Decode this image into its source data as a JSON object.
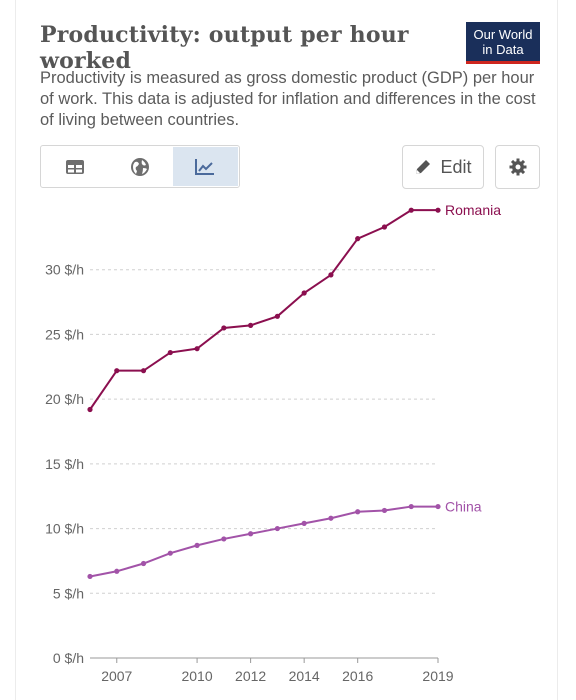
{
  "header": {
    "title": "Productivity: output per hour worked",
    "subtitle": "Productivity is measured as gross domestic product (GDP) per hour of work. This data is adjusted for inflation and differences in the cost of living between countries.",
    "logo_line1": "Our World",
    "logo_line2": "in Data"
  },
  "controls": {
    "edit_label": "Edit",
    "tabs": [
      {
        "icon": "table-icon",
        "active": false
      },
      {
        "icon": "globe-icon",
        "active": false
      },
      {
        "icon": "line-chart-icon",
        "active": true
      }
    ]
  },
  "colors": {
    "romania": "#8b0f4f",
    "china": "#a253a8",
    "grid": "#d0d0d0",
    "active_tab": "#dbe5f0"
  },
  "chart_data": {
    "type": "line",
    "title": "Productivity: output per hour worked",
    "ylim": [
      0,
      35
    ],
    "xlim": [
      2006,
      2019
    ],
    "y_ticks": [
      {
        "value": 0,
        "label": "0 $/h"
      },
      {
        "value": 5,
        "label": "5 $/h"
      },
      {
        "value": 10,
        "label": "10 $/h"
      },
      {
        "value": 15,
        "label": "15 $/h"
      },
      {
        "value": 20,
        "label": "20 $/h"
      },
      {
        "value": 25,
        "label": "25 $/h"
      },
      {
        "value": 30,
        "label": "30 $/h"
      }
    ],
    "x_ticks": [
      {
        "value": 2007,
        "label": "2007"
      },
      {
        "value": 2010,
        "label": "2010"
      },
      {
        "value": 2012,
        "label": "2012"
      },
      {
        "value": 2014,
        "label": "2014"
      },
      {
        "value": 2016,
        "label": "2016"
      },
      {
        "value": 2019,
        "label": "2019"
      }
    ],
    "x": [
      2006,
      2007,
      2008,
      2009,
      2010,
      2011,
      2012,
      2013,
      2014,
      2015,
      2016,
      2017,
      2018,
      2019
    ],
    "series": [
      {
        "name": "Romania",
        "values": [
          19.2,
          22.2,
          22.2,
          23.6,
          23.9,
          25.5,
          25.7,
          26.4,
          28.2,
          29.6,
          32.4,
          33.3,
          34.6,
          34.6
        ]
      },
      {
        "name": "China",
        "values": [
          6.3,
          6.7,
          7.3,
          8.1,
          8.7,
          9.2,
          9.6,
          10.0,
          10.4,
          10.8,
          11.3,
          11.4,
          11.7,
          11.7
        ]
      }
    ]
  }
}
